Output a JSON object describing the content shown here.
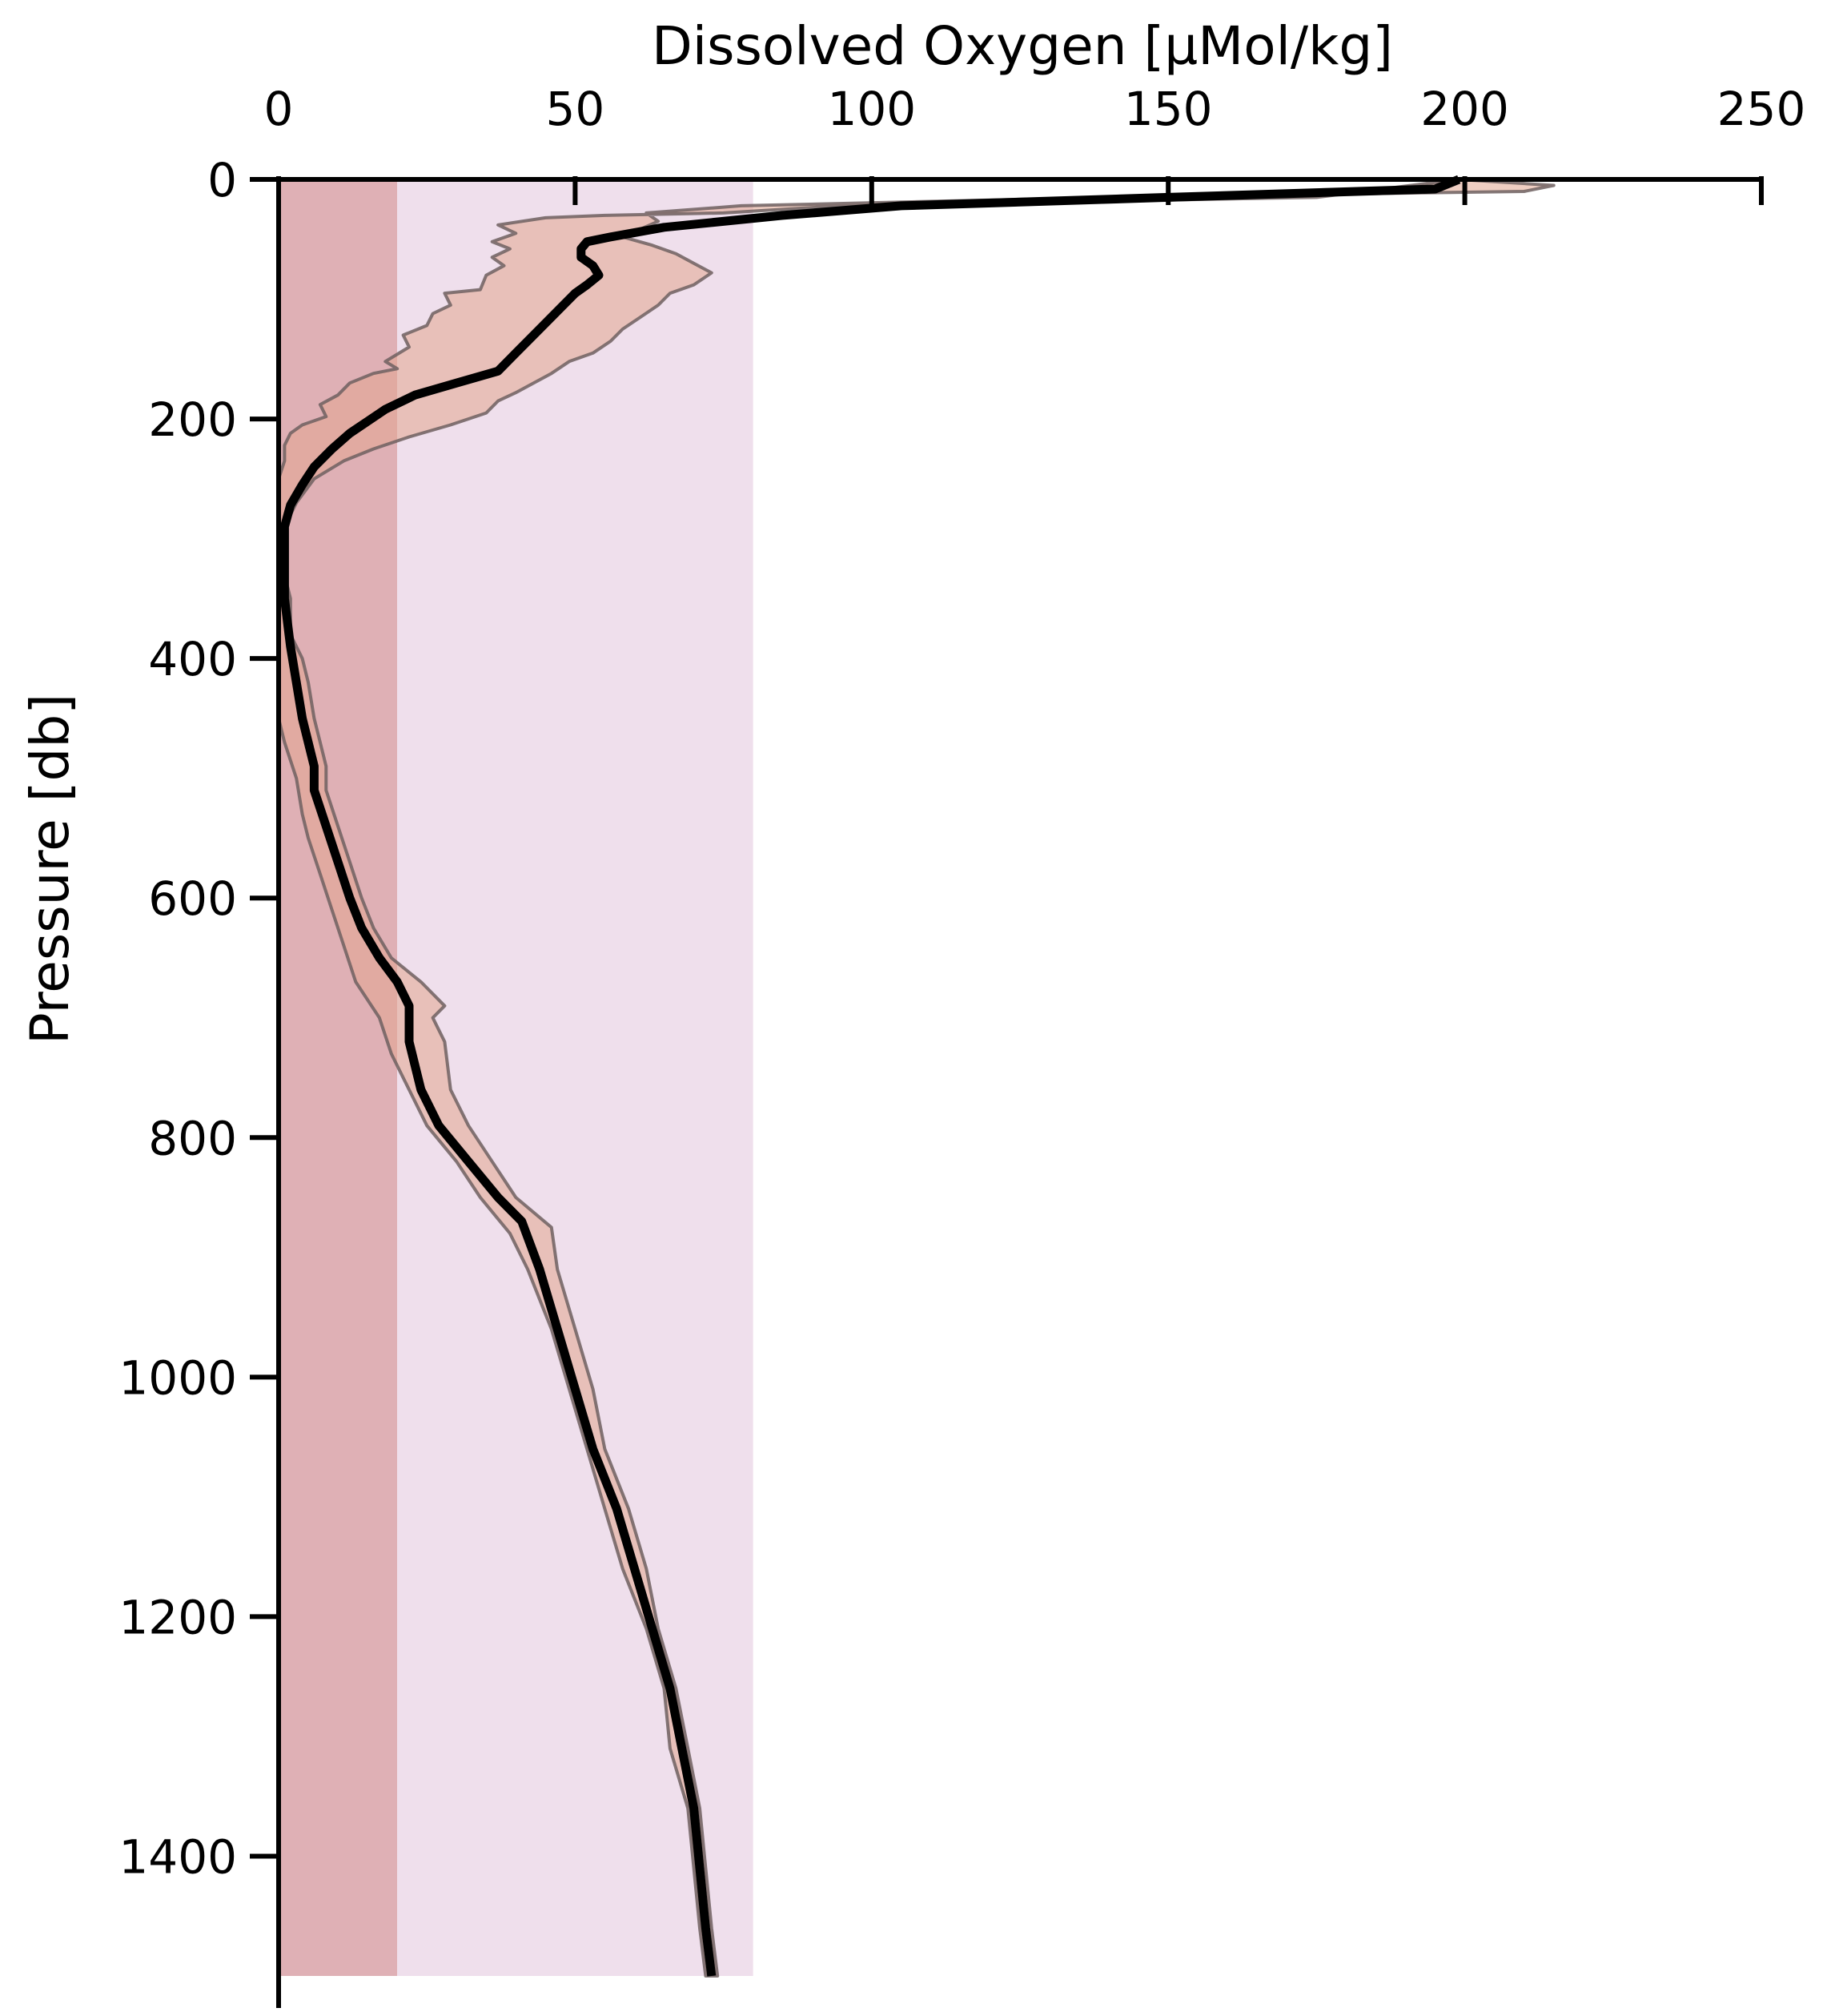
{
  "chart_data": {
    "type": "line",
    "xlabel": "Dissolved Oxygen [µMol/kg]",
    "ylabel": "Pressure [db]",
    "xlim": [
      0,
      250
    ],
    "ylim": [
      1500,
      0
    ],
    "x_axis_position": "top",
    "y_inverted": true,
    "grid": false,
    "x_ticks": [
      "0",
      "50",
      "100",
      "150",
      "200",
      "250"
    ],
    "y_ticks": [
      "0",
      "200",
      "400",
      "600",
      "800",
      "1000",
      "1200",
      "1400"
    ],
    "bands": [
      {
        "x0": 0,
        "x1": 20,
        "color": "#dfb0b5"
      },
      {
        "x0": 20,
        "x1": 80,
        "color": "#efdfec"
      }
    ],
    "envelope_color": "#e2a690",
    "envelope_edge_color": "#6f6060",
    "line_color": "#000000",
    "series": [
      {
        "mean": [
          [
            199,
            0
          ],
          [
            195,
            8
          ],
          [
            150,
            15
          ],
          [
            105,
            22
          ],
          [
            85,
            30
          ],
          [
            65,
            40
          ],
          [
            56,
            48
          ],
          [
            52,
            52
          ],
          [
            51,
            58
          ],
          [
            51,
            65
          ],
          [
            53,
            72
          ],
          [
            54,
            80
          ],
          [
            52,
            88
          ],
          [
            50,
            95
          ],
          [
            47,
            110
          ],
          [
            44,
            125
          ],
          [
            42,
            135
          ],
          [
            40,
            145
          ],
          [
            37,
            160
          ],
          [
            30,
            170
          ],
          [
            23,
            180
          ],
          [
            18,
            192
          ],
          [
            15,
            202
          ],
          [
            12,
            212
          ],
          [
            9,
            225
          ],
          [
            6,
            240
          ],
          [
            4,
            255
          ],
          [
            2,
            272
          ],
          [
            1,
            290
          ],
          [
            1,
            320
          ],
          [
            1,
            350
          ],
          [
            2,
            390
          ],
          [
            3,
            420
          ],
          [
            4,
            450
          ],
          [
            5,
            470
          ],
          [
            6,
            490
          ],
          [
            6,
            510
          ],
          [
            8,
            540
          ],
          [
            10,
            570
          ],
          [
            12,
            600
          ],
          [
            14,
            625
          ],
          [
            17,
            650
          ],
          [
            20,
            670
          ],
          [
            22,
            690
          ],
          [
            22,
            720
          ],
          [
            24,
            760
          ],
          [
            27,
            790
          ],
          [
            32,
            820
          ],
          [
            37,
            850
          ],
          [
            41,
            870
          ],
          [
            44,
            910
          ],
          [
            47,
            960
          ],
          [
            50,
            1010
          ],
          [
            53,
            1060
          ],
          [
            57,
            1110
          ],
          [
            60,
            1160
          ],
          [
            63,
            1210
          ],
          [
            66,
            1260
          ],
          [
            68,
            1310
          ],
          [
            70,
            1360
          ],
          [
            71,
            1410
          ],
          [
            72,
            1460
          ],
          [
            73,
            1500
          ]
        ],
        "lower": [
          [
            199,
            0
          ],
          [
            175,
            15
          ],
          [
            95,
            22
          ],
          [
            75,
            28
          ],
          [
            55,
            30
          ],
          [
            45,
            32
          ],
          [
            37,
            38
          ],
          [
            40,
            45
          ],
          [
            36,
            52
          ],
          [
            39,
            58
          ],
          [
            36,
            65
          ],
          [
            38,
            72
          ],
          [
            35,
            80
          ],
          [
            34,
            92
          ],
          [
            28,
            95
          ],
          [
            29,
            105
          ],
          [
            26,
            112
          ],
          [
            25,
            122
          ],
          [
            21,
            130
          ],
          [
            22,
            140
          ],
          [
            18,
            152
          ],
          [
            20,
            158
          ],
          [
            16,
            162
          ],
          [
            12,
            170
          ],
          [
            10,
            180
          ],
          [
            7,
            188
          ],
          [
            8,
            198
          ],
          [
            4,
            205
          ],
          [
            2,
            212
          ],
          [
            1,
            222
          ],
          [
            1,
            235
          ],
          [
            0,
            250
          ],
          [
            0,
            450
          ],
          [
            1,
            470
          ],
          [
            3,
            500
          ],
          [
            4,
            530
          ],
          [
            5,
            550
          ],
          [
            7,
            580
          ],
          [
            9,
            610
          ],
          [
            11,
            640
          ],
          [
            13,
            670
          ],
          [
            17,
            700
          ],
          [
            19,
            730
          ],
          [
            22,
            760
          ],
          [
            25,
            790
          ],
          [
            30,
            820
          ],
          [
            34,
            850
          ],
          [
            39,
            880
          ],
          [
            42,
            910
          ],
          [
            46,
            960
          ],
          [
            49,
            1010
          ],
          [
            52,
            1060
          ],
          [
            55,
            1110
          ],
          [
            58,
            1160
          ],
          [
            62,
            1210
          ],
          [
            65,
            1260
          ],
          [
            66,
            1310
          ],
          [
            69,
            1360
          ],
          [
            70,
            1410
          ],
          [
            71,
            1460
          ],
          [
            72,
            1500
          ]
        ],
        "upper": [
          [
            215,
            5
          ],
          [
            210,
            10
          ],
          [
            140,
            15
          ],
          [
            78,
            22
          ],
          [
            62,
            28
          ],
          [
            64,
            35
          ],
          [
            58,
            48
          ],
          [
            63,
            55
          ],
          [
            67,
            62
          ],
          [
            70,
            70
          ],
          [
            73,
            78
          ],
          [
            70,
            88
          ],
          [
            66,
            95
          ],
          [
            64,
            105
          ],
          [
            61,
            115
          ],
          [
            58,
            125
          ],
          [
            56,
            135
          ],
          [
            53,
            145
          ],
          [
            49,
            152
          ],
          [
            46,
            162
          ],
          [
            43,
            170
          ],
          [
            40,
            178
          ],
          [
            37,
            185
          ],
          [
            35,
            195
          ],
          [
            29,
            205
          ],
          [
            22,
            215
          ],
          [
            16,
            225
          ],
          [
            11,
            235
          ],
          [
            6,
            250
          ],
          [
            3,
            270
          ],
          [
            1,
            290
          ],
          [
            1,
            300
          ],
          [
            1,
            330
          ],
          [
            2,
            350
          ],
          [
            2,
            380
          ],
          [
            4,
            400
          ],
          [
            5,
            420
          ],
          [
            6,
            450
          ],
          [
            7,
            470
          ],
          [
            8,
            490
          ],
          [
            8,
            510
          ],
          [
            10,
            540
          ],
          [
            12,
            570
          ],
          [
            14,
            600
          ],
          [
            16,
            625
          ],
          [
            19,
            650
          ],
          [
            24,
            670
          ],
          [
            28,
            690
          ],
          [
            26,
            700
          ],
          [
            28,
            720
          ],
          [
            29,
            760
          ],
          [
            32,
            790
          ],
          [
            36,
            820
          ],
          [
            40,
            850
          ],
          [
            46,
            875
          ],
          [
            47,
            910
          ],
          [
            50,
            960
          ],
          [
            53,
            1010
          ],
          [
            55,
            1060
          ],
          [
            59,
            1110
          ],
          [
            62,
            1160
          ],
          [
            64,
            1210
          ],
          [
            67,
            1260
          ],
          [
            69,
            1310
          ],
          [
            71,
            1360
          ],
          [
            72,
            1410
          ],
          [
            73,
            1460
          ],
          [
            74,
            1500
          ]
        ]
      }
    ]
  }
}
